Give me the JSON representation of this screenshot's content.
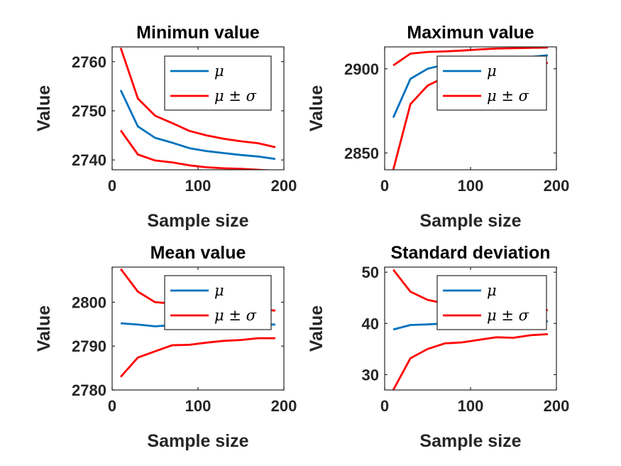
{
  "chart_data": [
    {
      "type": "line",
      "title": "Minimun value",
      "xlabel": "Sample size",
      "ylabel": "Value",
      "xlim": [
        0,
        200
      ],
      "ylim": [
        2738,
        2763
      ],
      "xticks": [
        0,
        100,
        200
      ],
      "yticks": [
        2740,
        2750,
        2760
      ],
      "legend": [
        "μ",
        "μ ± σ"
      ],
      "legend_position": "top-right",
      "x": [
        10,
        30,
        50,
        70,
        90,
        110,
        130,
        150,
        170,
        190
      ],
      "series": [
        {
          "role": "mean",
          "color": "#0072BD",
          "values": [
            2754.2,
            2746.8,
            2744.5,
            2743.5,
            2742.4,
            2741.8,
            2741.4,
            2741.0,
            2740.7,
            2740.2
          ]
        },
        {
          "role": "upper",
          "color": "#FF0000",
          "values": [
            2762.8,
            2752.5,
            2749.0,
            2747.5,
            2745.9,
            2745.0,
            2744.3,
            2743.8,
            2743.4,
            2742.6
          ]
        },
        {
          "role": "lower",
          "color": "#FF0000",
          "values": [
            2746.0,
            2741.1,
            2739.9,
            2739.5,
            2738.9,
            2738.5,
            2738.3,
            2738.2,
            2738.0,
            2737.8
          ]
        }
      ]
    },
    {
      "type": "line",
      "title": "Maximun value",
      "xlabel": "Sample size",
      "ylabel": "Value",
      "xlim": [
        0,
        200
      ],
      "ylim": [
        2840,
        2913
      ],
      "xticks": [
        0,
        100,
        200
      ],
      "yticks": [
        2850,
        2900
      ],
      "legend": [
        "μ",
        "μ ± σ"
      ],
      "legend_position": "top-right",
      "x": [
        10,
        30,
        50,
        70,
        90,
        110,
        130,
        150,
        170,
        190
      ],
      "series": [
        {
          "role": "mean",
          "color": "#0072BD",
          "values": [
            2871,
            2894,
            2900,
            2902.5,
            2904,
            2905,
            2906,
            2906.5,
            2907,
            2908
          ]
        },
        {
          "role": "upper",
          "color": "#FF0000",
          "values": [
            2902,
            2909,
            2910,
            2910.3,
            2910.8,
            2911.5,
            2912,
            2912.2,
            2912.4,
            2912.6
          ]
        },
        {
          "role": "lower",
          "color": "#FF0000",
          "values": [
            2840,
            2879,
            2890,
            2895,
            2897.5,
            2899,
            2900,
            2901,
            2902,
            2903.5
          ]
        }
      ]
    },
    {
      "type": "line",
      "title": "Mean value",
      "xlabel": "Sample size",
      "ylabel": "Value",
      "xlim": [
        0,
        200
      ],
      "ylim": [
        2780,
        2808
      ],
      "xticks": [
        0,
        100,
        200
      ],
      "yticks": [
        2780,
        2790,
        2800
      ],
      "legend": [
        "μ",
        "μ ± σ"
      ],
      "legend_position": "top-right",
      "x": [
        10,
        30,
        50,
        70,
        90,
        110,
        130,
        150,
        170,
        190
      ],
      "series": [
        {
          "role": "mean",
          "color": "#0072BD",
          "values": [
            2795.2,
            2794.9,
            2794.5,
            2794.8,
            2795.0,
            2795.0,
            2795.0,
            2795.0,
            2795.0,
            2794.9
          ]
        },
        {
          "role": "upper",
          "color": "#FF0000",
          "values": [
            2807.6,
            2802.4,
            2800.0,
            2799.7,
            2799.3,
            2799.1,
            2798.9,
            2798.6,
            2798.3,
            2798.1
          ]
        },
        {
          "role": "lower",
          "color": "#FF0000",
          "values": [
            2783.0,
            2787.4,
            2788.8,
            2790.2,
            2790.3,
            2790.8,
            2791.2,
            2791.4,
            2791.8,
            2791.8
          ]
        }
      ]
    },
    {
      "type": "line",
      "title": "Standard deviation",
      "xlabel": "Sample size",
      "ylabel": "Value",
      "xlim": [
        0,
        200
      ],
      "ylim": [
        27,
        51
      ],
      "xticks": [
        0,
        100,
        200
      ],
      "yticks": [
        30,
        40,
        50
      ],
      "legend": [
        "μ",
        "μ ± σ"
      ],
      "legend_position": "top-right",
      "x": [
        10,
        30,
        50,
        70,
        90,
        110,
        130,
        150,
        170,
        190
      ],
      "series": [
        {
          "role": "mean",
          "color": "#0072BD",
          "values": [
            38.8,
            39.7,
            39.8,
            40.0,
            40.1,
            40.1,
            40.2,
            40.2,
            40.3,
            40.4
          ]
        },
        {
          "role": "upper",
          "color": "#FF0000",
          "values": [
            50.5,
            46.2,
            44.6,
            43.9,
            43.6,
            43.3,
            43.1,
            42.9,
            42.7,
            42.6
          ]
        },
        {
          "role": "lower",
          "color": "#FF0000",
          "values": [
            27.0,
            33.2,
            35.0,
            36.1,
            36.3,
            36.8,
            37.3,
            37.2,
            37.7,
            37.9
          ]
        }
      ]
    }
  ]
}
